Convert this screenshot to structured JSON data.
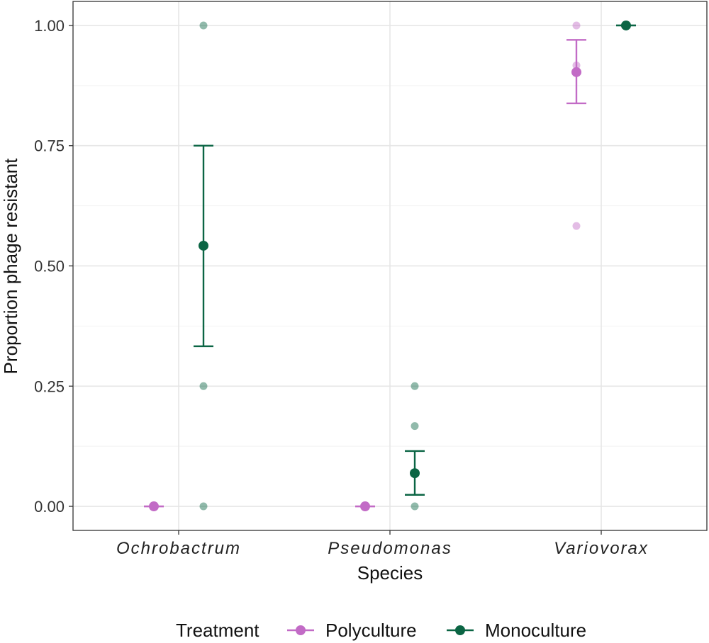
{
  "chart_data": {
    "type": "scatter",
    "title": "",
    "xlabel": "Species",
    "ylabel": "Proportion phage resistant",
    "categories": [
      "Ochrobactrum",
      "Pseudomonas",
      "Variovorax"
    ],
    "ylim": [
      -0.05,
      1.05
    ],
    "yticks": [
      "0.00",
      "0.25",
      "0.50",
      "0.75",
      "1.00"
    ],
    "grid": true,
    "legend": {
      "title": "Treatment",
      "position": "bottom"
    },
    "series": [
      {
        "name": "Polyculture",
        "color": "#c26bc6",
        "raw_points": [
          {
            "category": "Ochrobactrum",
            "values": [
              0
            ]
          },
          {
            "category": "Pseudomonas",
            "values": [
              0
            ]
          },
          {
            "category": "Variovorax",
            "values": [
              1.0,
              0.917,
              0.583
            ]
          }
        ],
        "summary": [
          {
            "category": "Ochrobactrum",
            "mean": 0,
            "lower": 0,
            "upper": 0
          },
          {
            "category": "Pseudomonas",
            "mean": 0,
            "lower": 0,
            "upper": 0
          },
          {
            "category": "Variovorax",
            "mean": 0.903,
            "lower": 0.838,
            "upper": 0.97
          }
        ]
      },
      {
        "name": "Monoculture",
        "color": "#0b6544",
        "raw_points": [
          {
            "category": "Ochrobactrum",
            "values": [
              1.0,
              0.25,
              0
            ]
          },
          {
            "category": "Pseudomonas",
            "values": [
              0.25,
              0.167,
              0
            ]
          },
          {
            "category": "Variovorax",
            "values": [
              1.0
            ]
          }
        ],
        "summary": [
          {
            "category": "Ochrobactrum",
            "mean": 0.542,
            "lower": 0.333,
            "upper": 0.75
          },
          {
            "category": "Pseudomonas",
            "mean": 0.069,
            "lower": 0.024,
            "upper": 0.115
          },
          {
            "category": "Variovorax",
            "mean": 1.0,
            "lower": 1.0,
            "upper": 1.0
          }
        ]
      }
    ]
  }
}
